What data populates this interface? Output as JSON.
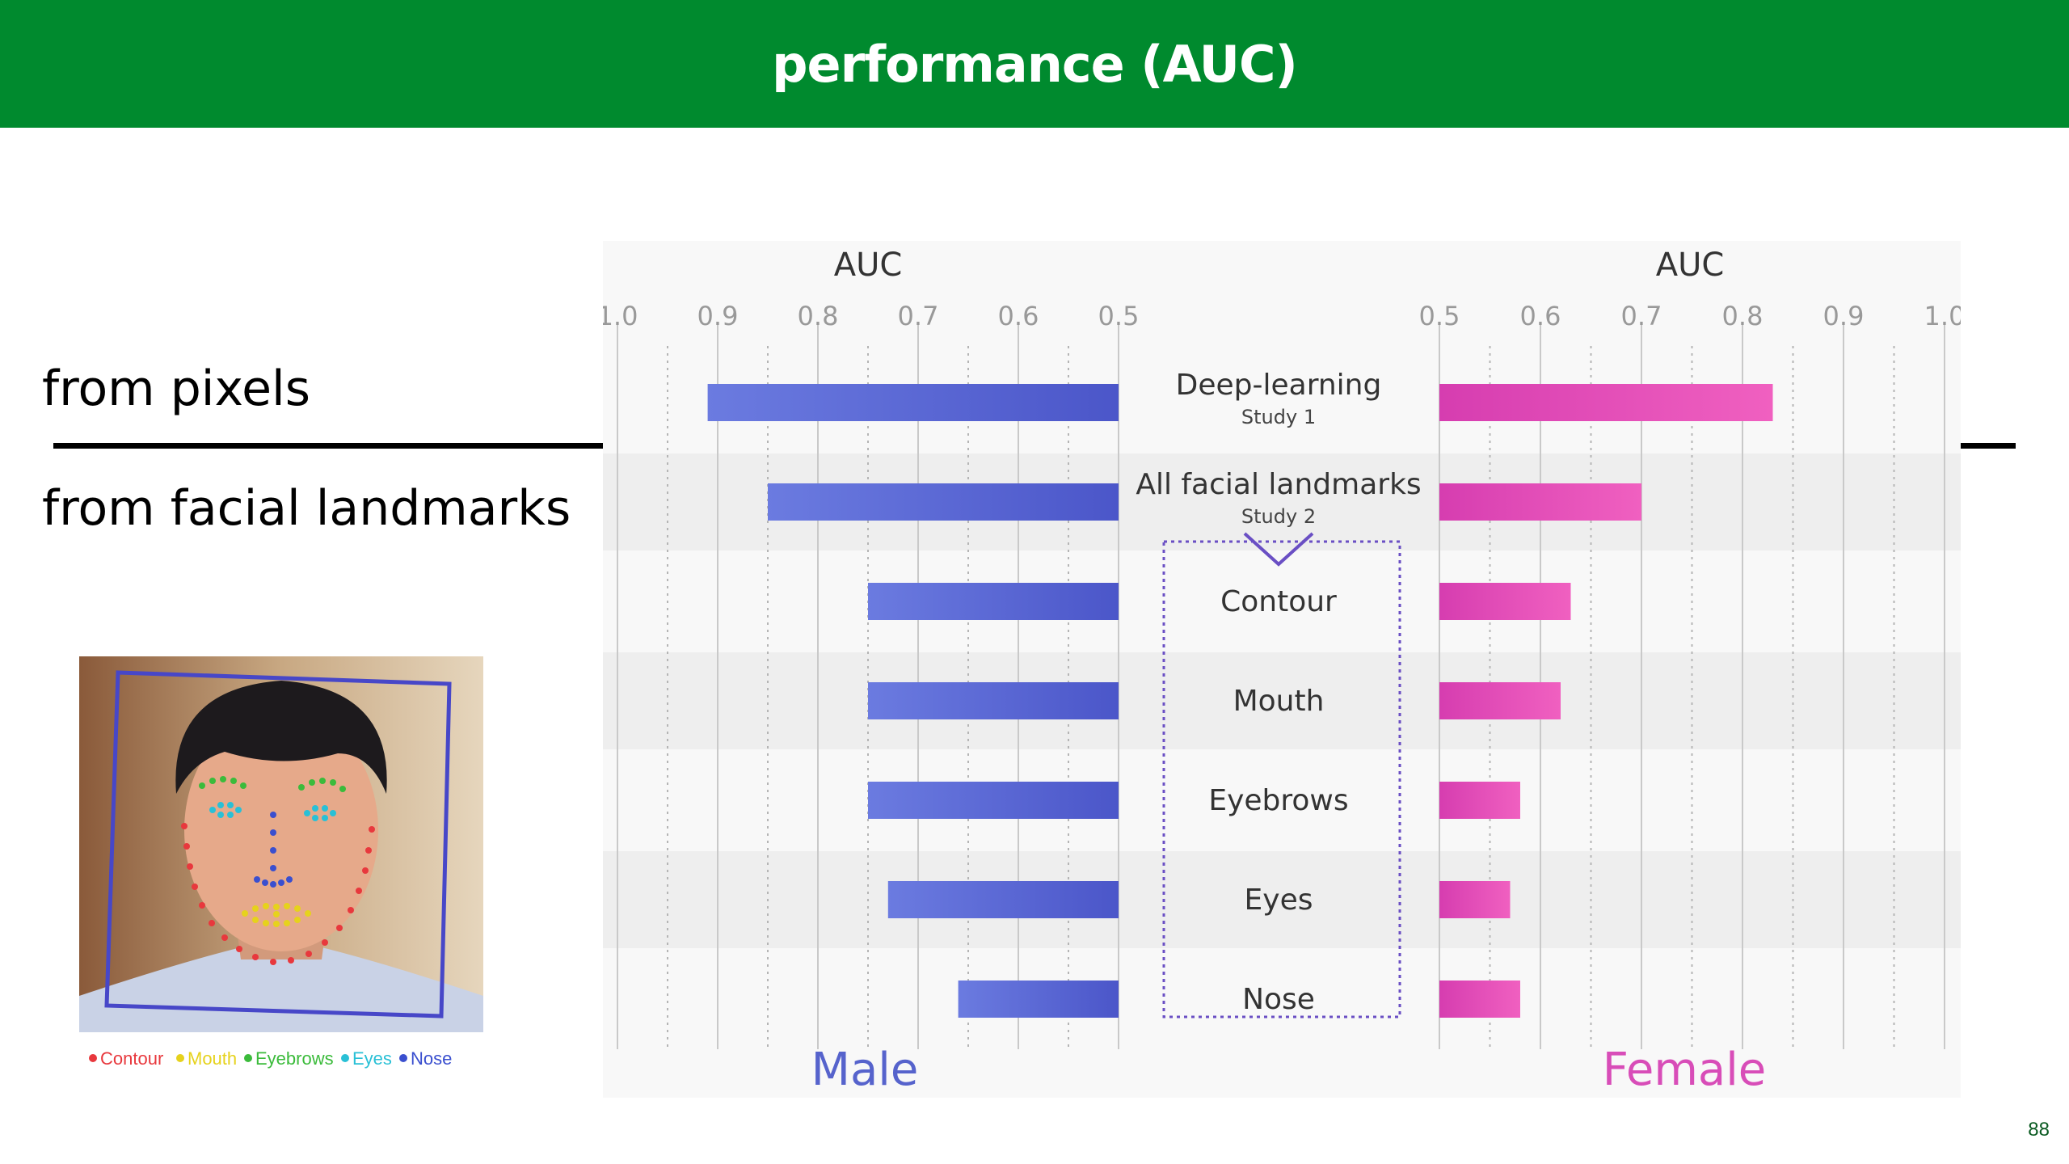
{
  "header": {
    "title": "performance (AUC)"
  },
  "labels": {
    "from_pixels": "from pixels",
    "from_landmarks": "from facial landmarks"
  },
  "photo": {
    "legend": [
      {
        "label": "Contour",
        "color": "#e8383d"
      },
      {
        "label": "Mouth",
        "color": "#e6d21c"
      },
      {
        "label": "Eyebrows",
        "color": "#3bbb3b"
      },
      {
        "label": "Eyes",
        "color": "#29c0d6"
      },
      {
        "label": "Nose",
        "color": "#3a4fcf"
      }
    ],
    "bbox_color": "#4747c8"
  },
  "page_number": "88",
  "chart_data": {
    "type": "bar",
    "layout": "back-to-back",
    "axis_title_left": "AUC",
    "axis_title_right": "AUC",
    "xlim": [
      0.5,
      1.0
    ],
    "ticks": [
      "1.0",
      "0.9",
      "0.8",
      "0.7",
      "0.6",
      "0.5"
    ],
    "ticks_right": [
      "0.5",
      "0.6",
      "0.7",
      "0.8",
      "0.9",
      "1.0"
    ],
    "categories": [
      {
        "label": "Deep-learning",
        "sublabel": "Study 1"
      },
      {
        "label": "All facial landmarks",
        "sublabel": "Study 2"
      },
      {
        "label": "Contour"
      },
      {
        "label": "Mouth"
      },
      {
        "label": "Eyebrows"
      },
      {
        "label": "Eyes"
      },
      {
        "label": "Nose"
      }
    ],
    "series": [
      {
        "name": "Male",
        "side": "left",
        "color": "#4b56c9",
        "values": [
          0.91,
          0.85,
          0.75,
          0.75,
          0.75,
          0.73,
          0.66
        ]
      },
      {
        "name": "Female",
        "side": "right",
        "color": "#d63db0",
        "values": [
          0.83,
          0.7,
          0.63,
          0.62,
          0.58,
          0.57,
          0.58
        ]
      }
    ],
    "grid": true
  }
}
